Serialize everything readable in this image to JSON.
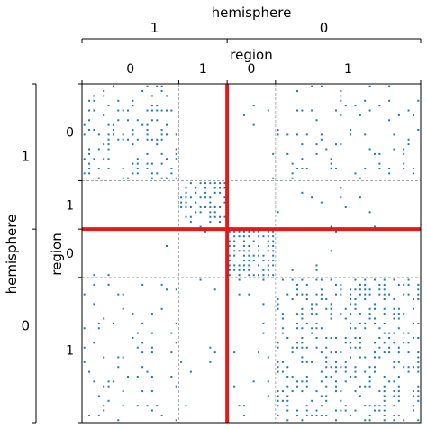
{
  "chart_data": {
    "type": "scatter",
    "subtype": "block adjacency matrix (spy plot)",
    "title": "",
    "top_outer_label": "hemisphere",
    "top_inner_label": "region",
    "left_outer_label": "hemisphere",
    "left_inner_label": "region",
    "hemisphere_ticks": [
      "1",
      "0"
    ],
    "region_ticks": [
      "0",
      "1",
      "0",
      "1"
    ],
    "groups": [
      {
        "hemisphere": "1",
        "region": "0",
        "size": 20
      },
      {
        "hemisphere": "1",
        "region": "1",
        "size": 10
      },
      {
        "hemisphere": "0",
        "region": "0",
        "size": 10
      },
      {
        "hemisphere": "0",
        "region": "1",
        "size": 30
      }
    ],
    "n_nodes": 70,
    "block_densities": [
      [
        0.28,
        0.0,
        0.02,
        0.12
      ],
      [
        0.0,
        0.5,
        0.01,
        0.02
      ],
      [
        0.02,
        0.01,
        0.8,
        0.03
      ],
      [
        0.12,
        0.02,
        0.03,
        0.35
      ]
    ],
    "hemisphere_divider_index": 30,
    "divider_color": "#e31a1c",
    "point_color": "#1f77b4",
    "grid": "dashed block boundaries",
    "legend": "none"
  }
}
